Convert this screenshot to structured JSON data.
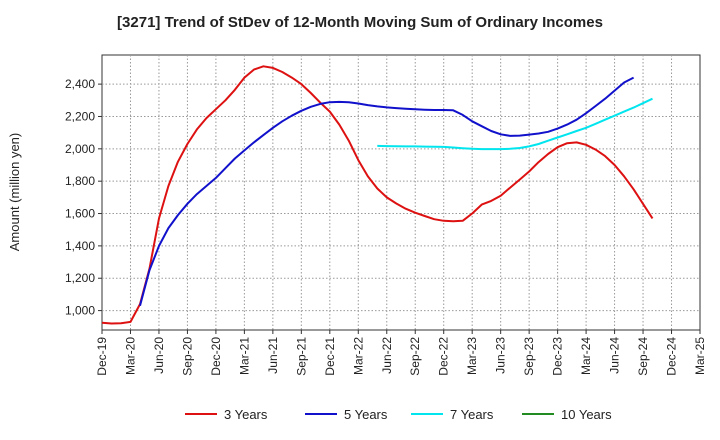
{
  "chart_data": {
    "type": "line",
    "title": "[3271]  Trend of StDev of 12-Month Moving Sum of Ordinary Incomes",
    "ylabel": "Amount (million yen)",
    "xlabel": "",
    "ylim": [
      880,
      2580
    ],
    "yticks": [
      1000,
      1200,
      1400,
      1600,
      1800,
      2000,
      2200,
      2400
    ],
    "ytick_labels": [
      "1,000",
      "1,200",
      "1,400",
      "1,600",
      "1,800",
      "2,000",
      "2,200",
      "2,400"
    ],
    "xticks": [
      "Dec-19",
      "Mar-20",
      "Jun-20",
      "Sep-20",
      "Dec-20",
      "Mar-21",
      "Jun-21",
      "Sep-21",
      "Dec-21",
      "Mar-22",
      "Jun-22",
      "Sep-22",
      "Dec-22",
      "Mar-23",
      "Jun-23",
      "Sep-23",
      "Dec-23",
      "Mar-24",
      "Jun-24",
      "Sep-24",
      "Dec-24",
      "Mar-25"
    ],
    "grid": true,
    "legend_position": "bottom",
    "series": [
      {
        "name": "3 Years",
        "color": "#dd1111",
        "start_month": "Dec-19",
        "values": [
          925,
          920,
          922,
          930,
          1040,
          1260,
          1570,
          1770,
          1920,
          2030,
          2120,
          2190,
          2245,
          2300,
          2365,
          2440,
          2490,
          2510,
          2500,
          2475,
          2440,
          2400,
          2345,
          2285,
          2230,
          2150,
          2050,
          1930,
          1830,
          1755,
          1700,
          1662,
          1630,
          1605,
          1585,
          1565,
          1555,
          1552,
          1555,
          1600,
          1655,
          1678,
          1710,
          1760,
          1810,
          1860,
          1918,
          1968,
          2010,
          2035,
          2040,
          2025,
          1995,
          1955,
          1900,
          1830,
          1750,
          1660,
          1570
        ]
      },
      {
        "name": "5 Years",
        "color": "#1111cc",
        "start_month": "Apr-20",
        "values": [
          1030,
          1250,
          1400,
          1510,
          1590,
          1660,
          1720,
          1770,
          1820,
          1880,
          1940,
          1990,
          2040,
          2085,
          2130,
          2170,
          2205,
          2235,
          2260,
          2278,
          2288,
          2290,
          2288,
          2280,
          2270,
          2262,
          2256,
          2252,
          2248,
          2245,
          2242,
          2240,
          2240,
          2238,
          2210,
          2170,
          2140,
          2110,
          2090,
          2080,
          2082,
          2088,
          2095,
          2105,
          2125,
          2150,
          2180,
          2220,
          2265,
          2310,
          2360,
          2410,
          2440
        ]
      },
      {
        "name": "7 Years",
        "color": "#00e5ee",
        "start_month": "May-22",
        "values": [
          2018,
          2017,
          2016,
          2015,
          2015,
          2014,
          2013,
          2012,
          2008,
          2004,
          2000,
          1998,
          1998,
          1998,
          2000,
          2005,
          2015,
          2030,
          2050,
          2070,
          2090,
          2110,
          2130,
          2155,
          2180,
          2205,
          2230,
          2255,
          2282,
          2310
        ]
      },
      {
        "name": "10 Years",
        "color": "#228b22",
        "start_month": "Dec-24",
        "values": []
      }
    ]
  }
}
